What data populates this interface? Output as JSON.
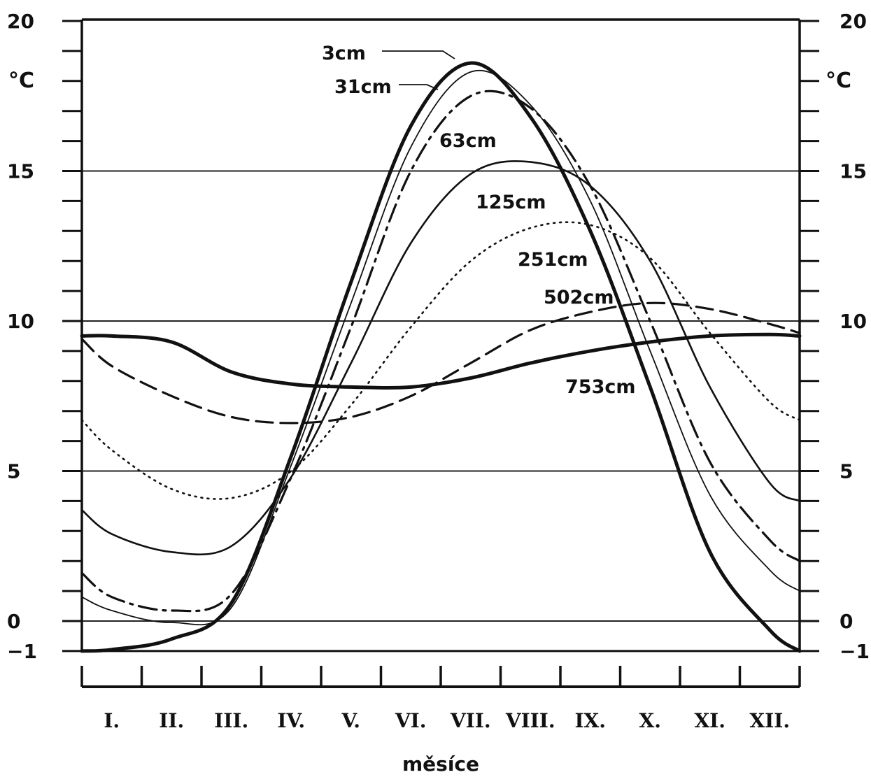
{
  "chart_data": {
    "type": "line",
    "xlabel": "měsíce",
    "ylabel_left": "°C",
    "ylabel_right": "°C",
    "ylim": [
      -1,
      20
    ],
    "y_ticks_labeled": [
      {
        "value": 20,
        "label": "20"
      },
      {
        "value": 15,
        "label": "15"
      },
      {
        "value": 10,
        "label": "10"
      },
      {
        "value": 5,
        "label": "5"
      },
      {
        "value": 0,
        "label": "0"
      },
      {
        "value": -1,
        "label": "−1"
      }
    ],
    "gridlines_y": [
      15,
      10,
      5,
      0
    ],
    "categories": [
      "I.",
      "II.",
      "III.",
      "IV.",
      "V.",
      "VI.",
      "VII.",
      "VIII.",
      "IX.",
      "X.",
      "XI.",
      "XII."
    ],
    "x": [
      0,
      0.5,
      1.5,
      2.5,
      3.5,
      4.5,
      5.5,
      6.5,
      7.5,
      8.5,
      9.5,
      10.5,
      11.5,
      12
    ],
    "series": [
      {
        "name": "3cm",
        "style": "solid-heavy",
        "values": [
          -1.0,
          -0.95,
          -0.6,
          0.6,
          5.5,
          11.3,
          16.5,
          18.6,
          16.8,
          13.0,
          7.8,
          2.3,
          -0.3,
          -1.0
        ]
      },
      {
        "name": "31cm",
        "style": "solid-thin",
        "values": [
          0.8,
          0.35,
          -0.05,
          0.45,
          5.2,
          10.6,
          15.8,
          18.3,
          17.2,
          14.0,
          9.0,
          4.2,
          1.7,
          1.0
        ]
      },
      {
        "name": "63cm",
        "style": "dash-dot",
        "values": [
          1.6,
          0.8,
          0.35,
          0.9,
          4.8,
          9.8,
          15.0,
          17.5,
          17.1,
          14.5,
          10.0,
          5.3,
          2.7,
          2.0
        ]
      },
      {
        "name": "125cm",
        "style": "solid",
        "values": [
          3.7,
          2.9,
          2.3,
          2.5,
          4.8,
          8.6,
          12.6,
          14.9,
          15.3,
          14.5,
          12.0,
          7.8,
          4.6,
          4.0
        ]
      },
      {
        "name": "251cm",
        "style": "dotted",
        "values": [
          6.7,
          5.7,
          4.4,
          4.1,
          5.0,
          7.2,
          9.8,
          12.0,
          13.1,
          13.2,
          12.1,
          9.6,
          7.3,
          6.7
        ]
      },
      {
        "name": "502cm",
        "style": "dashed",
        "values": [
          9.4,
          8.5,
          7.5,
          6.8,
          6.6,
          6.8,
          7.5,
          8.6,
          9.7,
          10.3,
          10.6,
          10.4,
          9.9,
          9.6
        ]
      },
      {
        "name": "753cm",
        "style": "solid-heavy",
        "values": [
          9.5,
          9.5,
          9.3,
          8.3,
          7.9,
          7.8,
          7.8,
          8.1,
          8.6,
          9.0,
          9.3,
          9.5,
          9.55,
          9.5
        ]
      }
    ]
  }
}
